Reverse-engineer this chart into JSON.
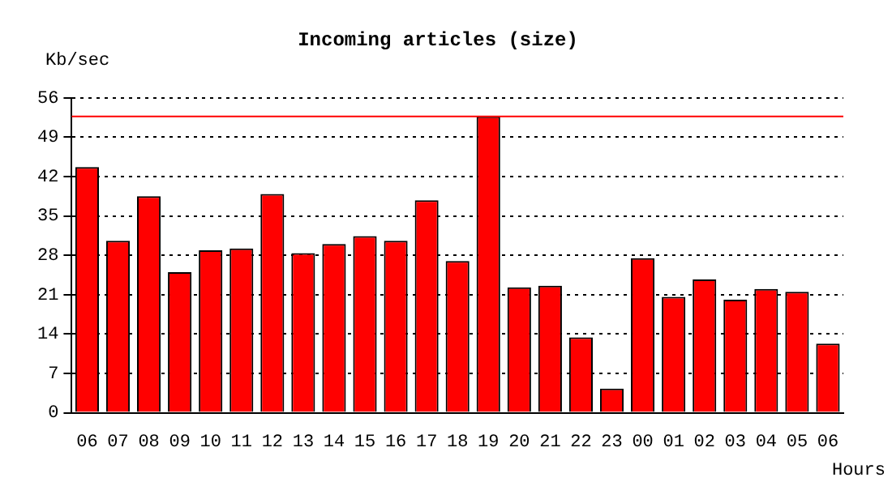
{
  "chart_data": {
    "type": "bar",
    "title": "Incoming articles (size)",
    "xlabel": "Hours",
    "ylabel": "Kb/sec",
    "categories": [
      "06",
      "07",
      "08",
      "09",
      "10",
      "11",
      "12",
      "13",
      "14",
      "15",
      "16",
      "17",
      "18",
      "19",
      "20",
      "21",
      "22",
      "23",
      "00",
      "01",
      "02",
      "03",
      "04",
      "05",
      "06"
    ],
    "values": [
      43.7,
      30.6,
      38.5,
      25.0,
      28.9,
      29.2,
      38.9,
      28.4,
      30.0,
      31.4,
      30.6,
      37.8,
      27.0,
      52.7,
      22.3,
      22.6,
      13.4,
      4.3,
      27.5,
      20.6,
      23.7,
      20.1,
      22.0,
      21.5,
      12.3
    ],
    "color": "#ff0000",
    "ylim": [
      0,
      56
    ],
    "yticks": [
      0,
      7,
      14,
      21,
      28,
      35,
      42,
      49,
      56
    ],
    "grid": "y",
    "legend": false,
    "ref_lines": [
      {
        "axis": "y",
        "value": 52.7,
        "color": "#ff0000"
      }
    ]
  }
}
